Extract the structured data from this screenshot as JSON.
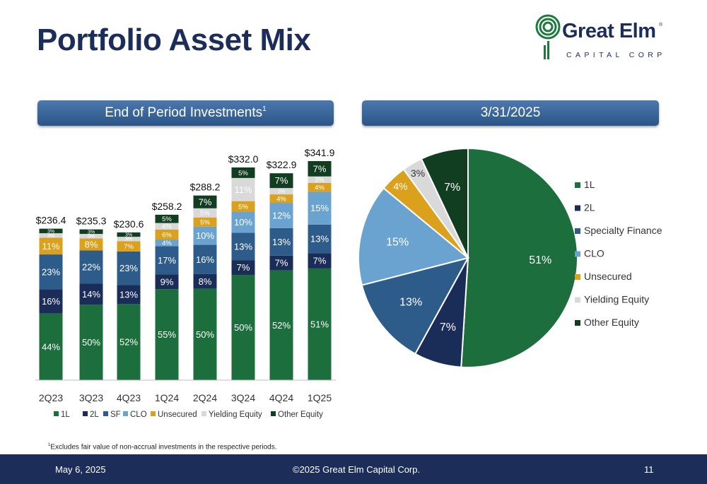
{
  "page": {
    "title": "Portfolio Asset Mix",
    "footnote_marker": "1",
    "footnote": "Excludes fair value of non-accrual investments in the respective periods."
  },
  "logo": {
    "name": "Great Elm",
    "registered": "®",
    "subtitle": "CAPITAL CORP",
    "icon": "elm-tree-icon",
    "color": "#1d2d5a",
    "accent": "#1e7a3c"
  },
  "banners": {
    "left_title": "End of Period Investments",
    "left_marker": "1",
    "right_title": "3/31/2025"
  },
  "footer": {
    "date": "May 6, 2025",
    "copyright": "©2025 Great Elm Capital Corp.",
    "page_number": "11"
  },
  "colors": {
    "1L": "#1c6e3c",
    "2L": "#1a2c58",
    "SF": "#2e5c8a",
    "CLO": "#6aa3d0",
    "Unsecured": "#dba11d",
    "Yielding Equity": "#d9d9d9",
    "Other Equity": "#113d21"
  },
  "chart_data": [
    {
      "type": "bar",
      "stacked": true,
      "normalized": true,
      "categories": [
        "2Q23",
        "3Q23",
        "4Q23",
        "1Q24",
        "2Q24",
        "3Q24",
        "4Q24",
        "1Q25"
      ],
      "totals": [
        "$236.4",
        "$235.3",
        "$230.6",
        "$258.2",
        "$288.2",
        "$332.0",
        "$322.9",
        "$341.9"
      ],
      "total_values": [
        236.4,
        235.3,
        230.6,
        258.2,
        288.2,
        332.0,
        322.9,
        341.9
      ],
      "series": [
        {
          "name": "1L",
          "values": [
            44,
            50,
            52,
            55,
            50,
            50,
            52,
            51
          ],
          "labels": [
            "44%",
            "50%",
            "52%",
            "55%",
            "50%",
            "50%",
            "52%",
            "51%"
          ]
        },
        {
          "name": "2L",
          "values": [
            16,
            14,
            13,
            9,
            8,
            7,
            7,
            7
          ],
          "labels": [
            "16%",
            "14%",
            "13%",
            "9%",
            "8%",
            "7%",
            "7%",
            "7%"
          ]
        },
        {
          "name": "SF",
          "values": [
            23,
            22,
            23,
            17,
            16,
            13,
            13,
            13
          ],
          "labels": [
            "23%",
            "22%",
            "23%",
            "17%",
            "16%",
            "13%",
            "13%",
            "13%"
          ]
        },
        {
          "name": "CLO",
          "values": [
            0,
            0,
            0,
            4,
            10,
            10,
            12,
            15
          ],
          "labels": [
            "",
            "",
            "",
            "4%",
            "10%",
            "10%",
            "12%",
            "15%"
          ]
        },
        {
          "name": "Unsecured",
          "values": [
            11,
            8,
            7,
            6,
            5,
            5,
            4,
            4
          ],
          "labels": [
            "11%",
            "8%",
            "7%",
            "6%",
            "5%",
            "5%",
            "4%",
            "4%"
          ]
        },
        {
          "name": "Yielding Equity",
          "values": [
            3,
            3,
            3,
            4,
            5,
            11,
            3,
            3
          ],
          "labels": [
            "3%",
            "3%",
            "3%",
            "4%",
            "5%",
            "11%",
            "3%",
            "3%"
          ]
        },
        {
          "name": "Other Equity",
          "values": [
            3,
            3,
            3,
            5,
            7,
            5,
            7,
            7
          ],
          "labels": [
            "3%",
            "3%",
            "3%",
            "5%",
            "7%",
            "5%",
            "7%",
            "7%"
          ]
        }
      ],
      "legend": [
        "1L",
        "2L",
        "SF",
        "CLO",
        "Unsecured",
        "Yielding Equity",
        "Other Equity"
      ],
      "legend_position": "bottom"
    },
    {
      "type": "pie",
      "labels": [
        "1L",
        "2L",
        "Specialty Finance",
        "CLO",
        "Unsecured",
        "Yielding Equity",
        "Other Equity"
      ],
      "values": [
        51,
        7,
        13,
        15,
        4,
        3,
        7
      ],
      "value_labels": [
        "51%",
        "7%",
        "13%",
        "15%",
        "4%",
        "3%",
        "7%"
      ],
      "legend_position": "right"
    }
  ]
}
